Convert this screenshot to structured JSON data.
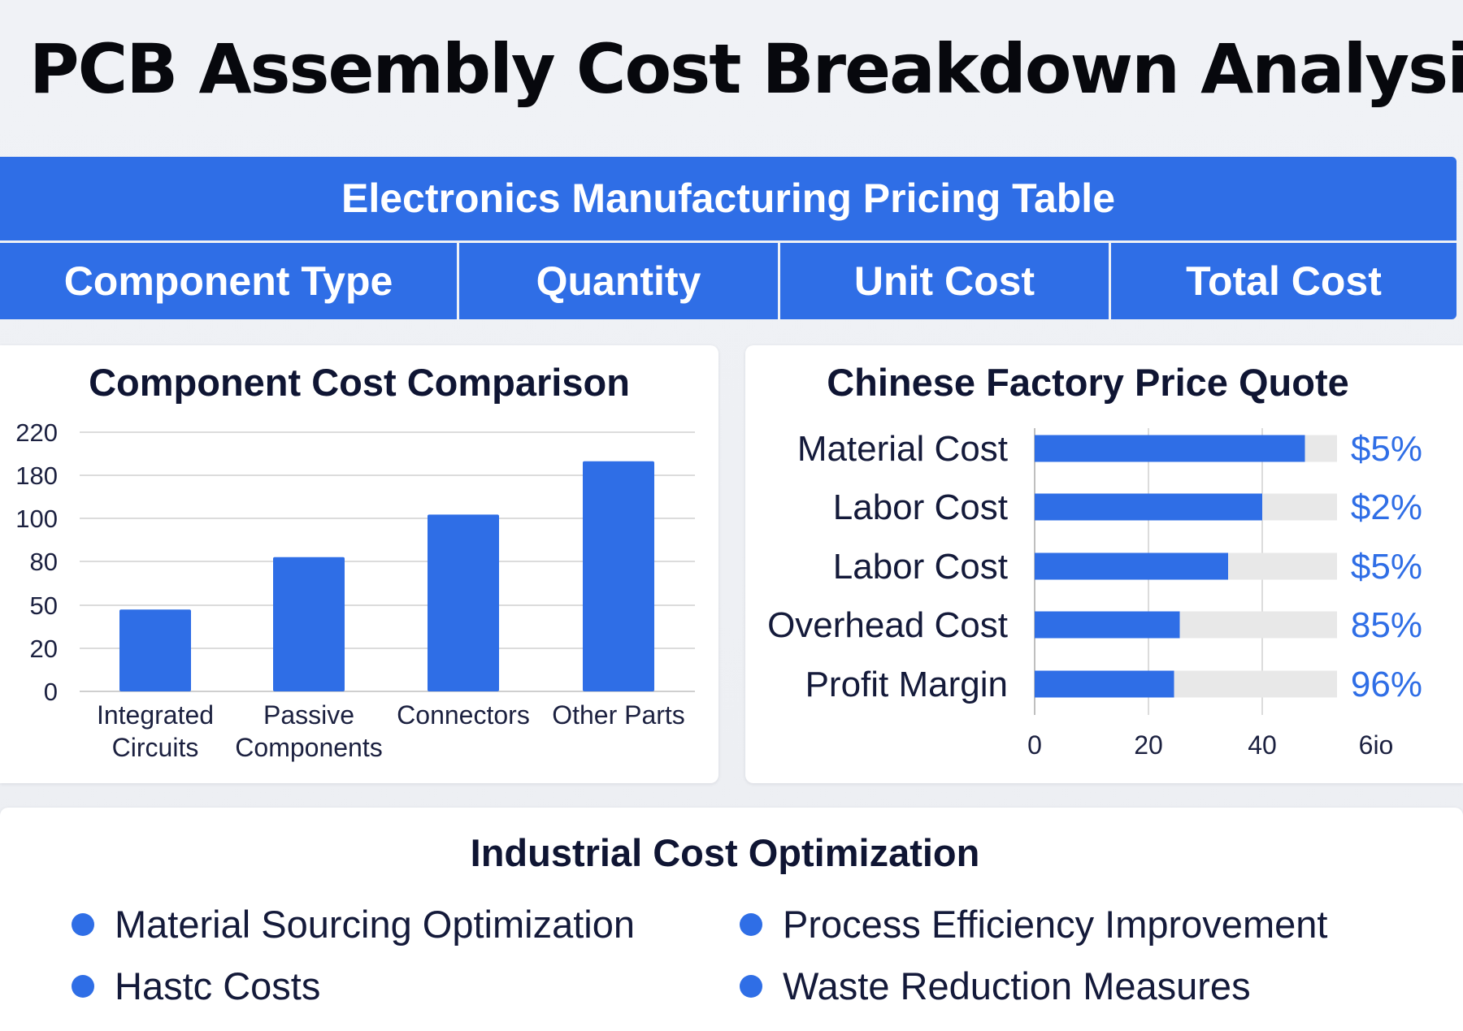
{
  "page": {
    "title": "PCB Assembly Cost Breakdown Analysis"
  },
  "pricing_table": {
    "banner": "Electronics Manufacturing Pricing Table",
    "columns": [
      "Component Type",
      "Quantity",
      "Unit Cost",
      "Total Cost"
    ]
  },
  "colors": {
    "accent": "#2f6ee6",
    "track": "#e8e8e8",
    "grid": "#dcdcdc",
    "text_dark": "#0f1533"
  },
  "chart_data": [
    {
      "type": "bar",
      "title": "Component Cost Comparison",
      "categories": [
        "Integrated Circuits",
        "Passive Components",
        "Connectors",
        "Other Parts"
      ],
      "category_lines": [
        [
          "Integrated",
          "Circuits"
        ],
        [
          "Passive",
          "Components"
        ],
        [
          "Connectors"
        ],
        [
          "Other Parts"
        ]
      ],
      "y_ticks": [
        "0",
        "20",
        "50",
        "80",
        "100",
        "180",
        "220"
      ],
      "values": [
        47,
        82,
        107,
        193
      ],
      "grid": true
    },
    {
      "type": "bar",
      "orientation": "horizontal",
      "title": "Chinese Factory Price Quote",
      "categories": [
        "Material Cost",
        "Labor Cost",
        "Labor Cost",
        "Overhead Cost",
        "Profit Margin"
      ],
      "values": [
        47.5,
        40,
        34,
        25.5,
        24.5
      ],
      "value_labels": [
        "$5%",
        "$2%",
        "$5%",
        "85%",
        "96%"
      ],
      "x_ticks": [
        "0",
        "20",
        "40",
        "6io"
      ],
      "x_tick_values": [
        0,
        20,
        40,
        60
      ],
      "xlim": [
        0,
        53.5
      ],
      "grid": true
    }
  ],
  "optimization": {
    "title": "Industrial Cost Optimization",
    "items": [
      "Material Sourcing Optimization",
      "Process Efficiency Improvement",
      "Hastc Costs",
      "Waste Reduction Measures"
    ]
  }
}
